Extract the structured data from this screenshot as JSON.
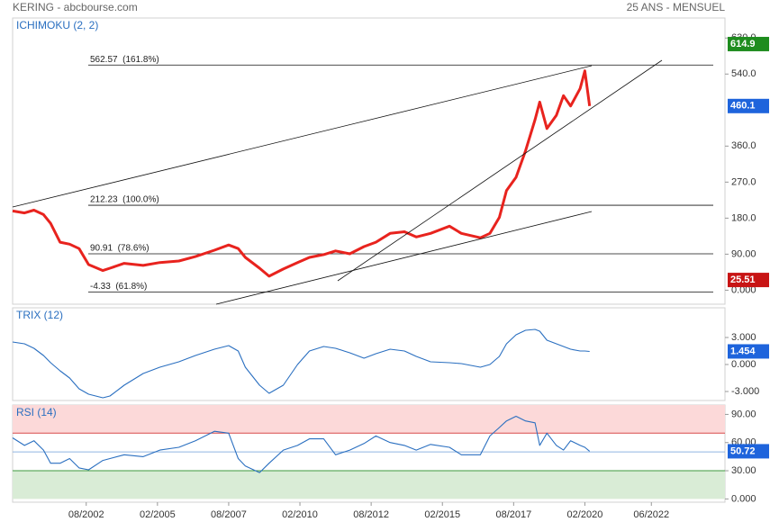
{
  "header": {
    "title": "KERING - abcbourse.com",
    "period": "25 ANS - MENSUEL"
  },
  "chart_data": [
    {
      "type": "line",
      "title": "ICHIMOKU (2, 2)",
      "x": [
        "2000-01",
        "2000-06",
        "2000-10",
        "2001-02",
        "2001-05",
        "2001-09",
        "2002-01",
        "2002-05",
        "2002-09",
        "2003-03",
        "2003-06",
        "2003-12",
        "2004-08",
        "2005-03",
        "2005-11",
        "2006-06",
        "2007-02",
        "2007-08",
        "2007-12",
        "2008-03",
        "2008-09",
        "2009-01",
        "2009-07",
        "2010-01",
        "2010-06",
        "2010-12",
        "2011-05",
        "2011-11",
        "2012-05",
        "2012-10",
        "2013-04",
        "2013-10",
        "2014-03",
        "2014-09",
        "2015-05",
        "2015-10",
        "2016-06",
        "2016-10",
        "2017-02",
        "2017-05",
        "2017-09",
        "2018-01",
        "2018-05",
        "2018-07",
        "2018-10",
        "2019-02",
        "2019-05",
        "2019-08",
        "2019-12",
        "2020-02",
        "2020-04"
      ],
      "series": [
        {
          "color": "#e8231e",
          "values": [
            198,
            193,
            200,
            189,
            167,
            120,
            115,
            104,
            64,
            49,
            55,
            67,
            62,
            69,
            73,
            84,
            100,
            113,
            104,
            82,
            55,
            35,
            53,
            69,
            82,
            89,
            98,
            91,
            109,
            120,
            142,
            146,
            133,
            142,
            160,
            142,
            131,
            142,
            182,
            249,
            282,
            348,
            426,
            470,
            404,
            437,
            486,
            460,
            504,
            548,
            460.1
          ]
        }
      ],
      "xlim": [
        "2000-01",
        "2025-01"
      ],
      "xticks": [
        {
          "value": "2002-08",
          "label": "08/2002"
        },
        {
          "value": "2005-02",
          "label": "02/2005"
        },
        {
          "value": "2007-08",
          "label": "08/2007"
        },
        {
          "value": "2010-02",
          "label": "02/2010"
        },
        {
          "value": "2012-08",
          "label": "08/2012"
        },
        {
          "value": "2015-02",
          "label": "02/2015"
        },
        {
          "value": "2017-08",
          "label": "08/2017"
        },
        {
          "value": "2020-02",
          "label": "02/2020"
        },
        {
          "value": "2022-06",
          "label": "06/2022"
        }
      ],
      "ylim": [
        -35,
        680
      ],
      "yticks": [
        {
          "value": 0,
          "label": "0.000"
        },
        {
          "value": 90,
          "label": "90.00"
        },
        {
          "value": 180,
          "label": "180.0"
        },
        {
          "value": 270,
          "label": "270.0"
        },
        {
          "value": 360,
          "label": "360.0"
        },
        {
          "value": 540,
          "label": "540.0"
        },
        {
          "value": 630,
          "label": "630.0"
        }
      ],
      "levels": [
        {
          "value": 562.57,
          "label": "562.57  (161.8%)"
        },
        {
          "value": 212.23,
          "label": "212.23  (100.0%)"
        },
        {
          "value": 90.91,
          "label": "90.91  (78.6%)"
        },
        {
          "value": -4.33,
          "label": "-4.33  (61.8%)"
        }
      ],
      "markers": [
        {
          "value": 614.9,
          "color": "#1e8c1e"
        },
        {
          "value": 460.1,
          "color": "#1e64dc"
        },
        {
          "value": 25.51,
          "color": "#c81414"
        }
      ]
    },
    {
      "type": "line",
      "title": "TRIX (12)",
      "series": [
        {
          "color": "#2a6fc0",
          "values": [
            2.5,
            2.3,
            1.8,
            1.0,
            0.2,
            -0.7,
            -1.5,
            -2.7,
            -3.3,
            -3.7,
            -3.5,
            -2.3,
            -1.0,
            -0.3,
            0.3,
            1.0,
            1.7,
            2.1,
            1.5,
            -0.3,
            -2.3,
            -3.2,
            -2.3,
            0,
            1.5,
            2.0,
            1.8,
            1.3,
            0.7,
            1.2,
            1.7,
            1.5,
            0.9,
            0.3,
            0.2,
            0.1,
            -0.3,
            0,
            0.9,
            2.3,
            3.3,
            3.8,
            3.9,
            3.7,
            2.7,
            2.3,
            2.0,
            1.7,
            1.5,
            1.5,
            1.454
          ]
        }
      ],
      "ylim": [
        -4,
        6.3
      ],
      "yticks": [
        {
          "value": -3,
          "label": "-3.000"
        },
        {
          "value": 0,
          "label": "0.000"
        },
        {
          "value": 3,
          "label": "3.000"
        }
      ],
      "markers": [
        {
          "value": 1.454,
          "color": "#1e64dc"
        }
      ]
    },
    {
      "type": "line",
      "title": "RSI (14)",
      "series": [
        {
          "color": "#2a6fc0",
          "values": [
            65,
            57,
            62,
            52,
            38,
            38,
            43,
            33,
            31,
            41,
            43,
            47,
            45,
            52,
            55,
            62,
            72,
            70,
            43,
            35,
            28,
            38,
            52,
            57,
            64,
            64,
            47,
            52,
            59,
            67,
            60,
            57,
            52,
            58,
            55,
            47,
            47,
            67,
            76,
            83,
            88,
            83,
            81,
            57,
            70,
            57,
            52,
            62,
            57,
            55,
            50.72
          ]
        }
      ],
      "ylim": [
        -3.5,
        100
      ],
      "yticks": [
        {
          "value": 0,
          "label": "0.000"
        },
        {
          "value": 30,
          "label": "30.00"
        },
        {
          "value": 60,
          "label": "60.00"
        },
        {
          "value": 90,
          "label": "90.00"
        }
      ],
      "bands": [
        {
          "from": 70,
          "to": 100,
          "color": "#fcd9d9"
        },
        {
          "from": 0,
          "to": 30,
          "color": "#d9ecd6"
        }
      ],
      "hlines": [
        {
          "value": 70,
          "color": "#d84a4a"
        },
        {
          "value": 50,
          "color": "#8fb4e0"
        },
        {
          "value": 30,
          "color": "#3f9a3f"
        }
      ],
      "markers": [
        {
          "value": 50.72,
          "color": "#1e64dc"
        }
      ]
    }
  ]
}
